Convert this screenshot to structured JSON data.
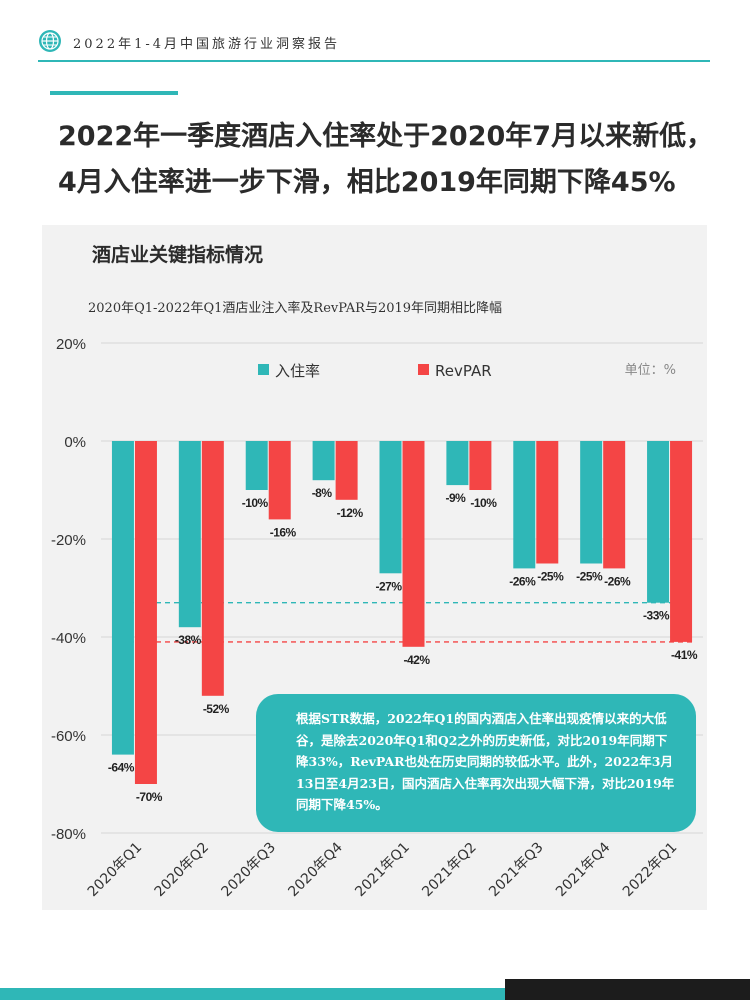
{
  "header": {
    "text": "2022年1-4月中国旅游行业洞察报告"
  },
  "title": {
    "line1": "2022年一季度酒店入住率处于2020年7月以来新低，",
    "line2": "4月入住率进一步下滑，相比2019年同期下降45%"
  },
  "panel": {
    "title": "酒店业关键指标情况",
    "subtitle": "2020年Q1-2022年Q1酒店业注入率及RevPAR与2019年同期相比降幅",
    "unit": "单位：%"
  },
  "callout": {
    "text": "根据STR数据，2022年Q1的国内酒店入住率出现疫情以来的大低谷，是除去2020年Q1和Q2之外的历史新低，对比2019年同期下降33%，RevPAR也处在历史同期的较低水平。此外，2022年3月13日至4月23日，国内酒店入住率再次出现大幅下滑，对比2019年同期下降45%。"
  },
  "colors": {
    "accent": "#2fb7b7",
    "series_occupancy": "#2fb7b7",
    "series_revpar": "#f44545"
  },
  "chart_data": {
    "type": "bar",
    "categories": [
      "2020年Q1",
      "2020年Q2",
      "2020年Q3",
      "2020年Q4",
      "2021年Q1",
      "2021年Q2",
      "2021年Q3",
      "2021年Q4",
      "2022年Q1"
    ],
    "series": [
      {
        "name": "入住率",
        "values": [
          -64,
          -38,
          -10,
          -8,
          -27,
          -9,
          -26,
          -25,
          -33
        ],
        "labels": [
          "-64%",
          "-38%",
          "-10%",
          "-8%",
          "-27%",
          "-9%",
          "-26%",
          "-25%",
          "-33%"
        ]
      },
      {
        "name": "RevPAR",
        "values": [
          -70,
          -52,
          -16,
          -12,
          -42,
          -10,
          -25,
          -26,
          -41
        ],
        "labels": [
          "-70%",
          "-52%",
          "-16%",
          "-12%",
          "-42%",
          "-10%",
          "-25%",
          "-26%",
          "-41%"
        ]
      }
    ],
    "yticks": [
      "20%",
      "0%",
      "-20%",
      "-40%",
      "-60%",
      "-80%"
    ],
    "ylim": [
      -80,
      20
    ],
    "reference_lines": [
      -33,
      -41
    ],
    "legend": "top",
    "grid": true
  }
}
